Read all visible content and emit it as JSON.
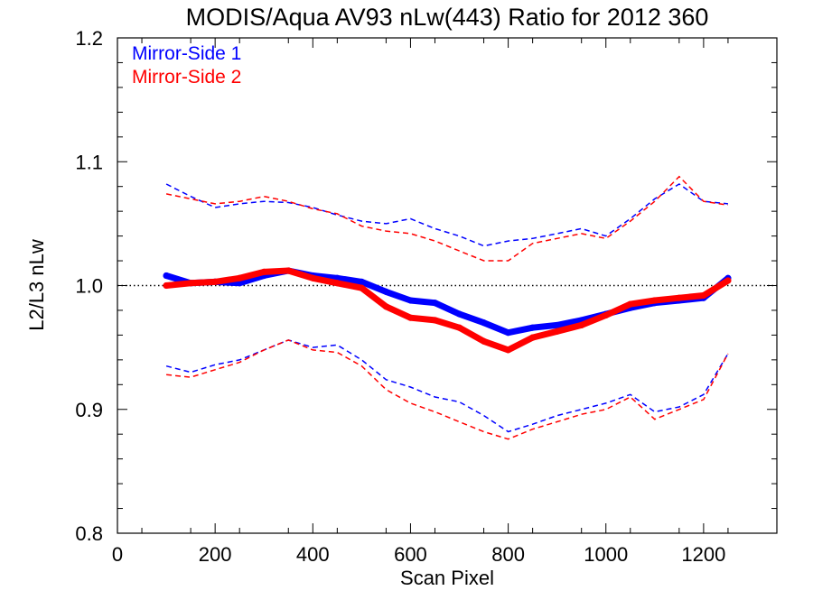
{
  "chart_data": {
    "type": "line",
    "title": "MODIS/Aqua AV93 nLw(443) Ratio for 2012 360",
    "xlabel": "Scan Pixel",
    "ylabel": "L2/L3 nLw",
    "xlim": [
      0,
      1350
    ],
    "ylim": [
      0.8,
      1.2
    ],
    "x_ticks": [
      0,
      200,
      400,
      600,
      800,
      1000,
      1200
    ],
    "x_tick_labels": [
      "0",
      "200",
      "400",
      "600",
      "800",
      "1000",
      "1200"
    ],
    "y_ticks": [
      0.8,
      0.9,
      1.0,
      1.1,
      1.2
    ],
    "y_tick_labels": [
      "0.8",
      "0.9",
      "1.0",
      "1.1",
      "1.2"
    ],
    "reference_line": 1.0,
    "legend_position": "top-left",
    "legend": [
      "Mirror-Side 1",
      "Mirror-Side 2"
    ],
    "colors": {
      "ms1": "#0000ff",
      "ms2": "#ff0000"
    },
    "x": [
      100,
      150,
      200,
      250,
      300,
      350,
      400,
      450,
      500,
      550,
      600,
      650,
      700,
      750,
      800,
      850,
      900,
      950,
      1000,
      1050,
      1100,
      1150,
      1200,
      1250
    ],
    "series": [
      {
        "name": "Mirror-Side 1",
        "role": "mean",
        "style": "dots",
        "values": [
          1.008,
          1.002,
          1.003,
          1.002,
          1.008,
          1.012,
          1.008,
          1.006,
          1.003,
          0.995,
          0.988,
          0.986,
          0.977,
          0.97,
          0.962,
          0.966,
          0.968,
          0.972,
          0.977,
          0.982,
          0.986,
          0.988,
          0.99,
          1.006
        ]
      },
      {
        "name": "Mirror-Side 2",
        "role": "mean",
        "style": "dots",
        "values": [
          1.0,
          1.002,
          1.003,
          1.006,
          1.011,
          1.012,
          1.006,
          1.002,
          0.998,
          0.983,
          0.974,
          0.972,
          0.966,
          0.955,
          0.948,
          0.958,
          0.963,
          0.968,
          0.976,
          0.985,
          0.988,
          0.99,
          0.992,
          1.004
        ]
      },
      {
        "name": "Mirror-Side 1",
        "role": "upper",
        "style": "dashed",
        "values": [
          1.082,
          1.072,
          1.063,
          1.066,
          1.068,
          1.067,
          1.063,
          1.057,
          1.052,
          1.05,
          1.054,
          1.046,
          1.04,
          1.032,
          1.036,
          1.038,
          1.042,
          1.046,
          1.04,
          1.054,
          1.07,
          1.082,
          1.068,
          1.066
        ]
      },
      {
        "name": "Mirror-Side 2",
        "role": "upper",
        "style": "dashed",
        "values": [
          1.074,
          1.07,
          1.066,
          1.068,
          1.072,
          1.068,
          1.062,
          1.058,
          1.048,
          1.044,
          1.042,
          1.036,
          1.028,
          1.02,
          1.02,
          1.034,
          1.038,
          1.042,
          1.038,
          1.052,
          1.068,
          1.088,
          1.068,
          1.065
        ]
      },
      {
        "name": "Mirror-Side 1",
        "role": "lower",
        "style": "dashed",
        "values": [
          0.935,
          0.93,
          0.936,
          0.94,
          0.948,
          0.956,
          0.95,
          0.952,
          0.94,
          0.924,
          0.918,
          0.91,
          0.906,
          0.895,
          0.882,
          0.888,
          0.895,
          0.9,
          0.905,
          0.912,
          0.898,
          0.902,
          0.912,
          0.945
        ]
      },
      {
        "name": "Mirror-Side 2",
        "role": "lower",
        "style": "dashed",
        "values": [
          0.928,
          0.926,
          0.932,
          0.938,
          0.948,
          0.956,
          0.948,
          0.946,
          0.935,
          0.916,
          0.905,
          0.898,
          0.89,
          0.882,
          0.876,
          0.884,
          0.89,
          0.896,
          0.9,
          0.91,
          0.892,
          0.9,
          0.908,
          0.945
        ]
      }
    ]
  }
}
